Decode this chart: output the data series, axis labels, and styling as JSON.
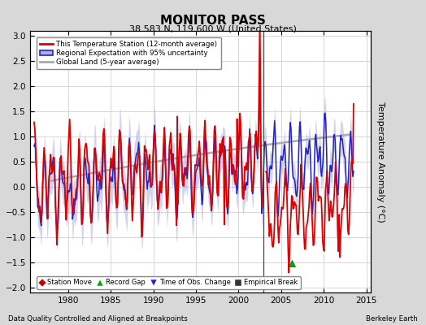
{
  "title": "MONITOR PASS",
  "subtitle": "38.583 N, 119.600 W (United States)",
  "ylabel": "Temperature Anomaly (°C)",
  "footer_left": "Data Quality Controlled and Aligned at Breakpoints",
  "footer_right": "Berkeley Earth",
  "xlim": [
    1975.5,
    2015.5
  ],
  "ylim": [
    -2.1,
    3.1
  ],
  "yticks": [
    -2,
    -1.5,
    -1,
    -0.5,
    0,
    0.5,
    1,
    1.5,
    2,
    2.5,
    3
  ],
  "xticks": [
    1980,
    1985,
    1990,
    1995,
    2000,
    2005,
    2010,
    2015
  ],
  "bg_color": "#d8d8d8",
  "plot_bg_color": "#ffffff",
  "red_line_color": "#dd0000",
  "blue_line_color": "#2222cc",
  "blue_fill_color": "#b0b0e0",
  "gray_line_color": "#aaaaaa",
  "vertical_line_x": 2002.9,
  "vertical_line_color": "#444444",
  "green_marker_x": 2006.3,
  "green_marker_y": -1.52,
  "legend_loc": "upper left"
}
